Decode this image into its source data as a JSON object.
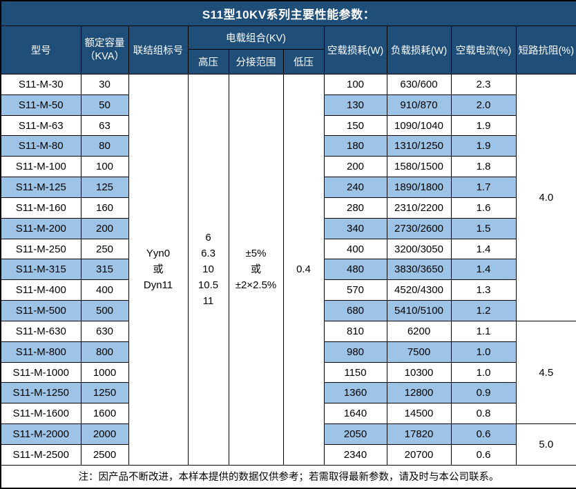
{
  "title": "S11型10KV系列主要性能参数：",
  "colors": {
    "header_bg": "#1F4E79",
    "header_text": "#FFFFFF",
    "row_alt_bg": "#9DC3E6",
    "border": "#000000",
    "body_text": "#000000"
  },
  "header": {
    "model": "型号",
    "capacity_line1": "额定容量",
    "capacity_line2": "（KVA）",
    "connection": "联结组标号",
    "voltage_group": "电载组合(KV)",
    "hv": "高压",
    "tap_range": "分接范围",
    "lv": "低压",
    "no_load_loss": "空载损耗(W)",
    "load_loss": "负载损耗(W)",
    "no_load_current": "空载电流(%)",
    "impedance": "短路抗阻(%)"
  },
  "merged": {
    "connection_lines": [
      "Yyn0",
      "或",
      "Dyn11"
    ],
    "hv_lines": [
      "6",
      "6.3",
      "10",
      "10.5",
      "11"
    ],
    "tap_lines": [
      "±5%",
      "或",
      "±2×2.5%"
    ],
    "lv": "0.4"
  },
  "impedance_groups": [
    {
      "value": "4.0",
      "start": 0,
      "rows": 12
    },
    {
      "value": "4.5",
      "start": 12,
      "rows": 5
    },
    {
      "value": "5.0",
      "start": 17,
      "rows": 2
    }
  ],
  "rows": [
    {
      "model": "S11-M-30",
      "capacity": "30",
      "no_load_loss": "100",
      "load_loss": "630/600",
      "no_load_current": "2.3"
    },
    {
      "model": "S11-M-50",
      "capacity": "50",
      "no_load_loss": "130",
      "load_loss": "910/870",
      "no_load_current": "2.0"
    },
    {
      "model": "S11-M-63",
      "capacity": "63",
      "no_load_loss": "150",
      "load_loss": "1090/1040",
      "no_load_current": "1.9"
    },
    {
      "model": "S11-M-80",
      "capacity": "80",
      "no_load_loss": "180",
      "load_loss": "1310/1250",
      "no_load_current": "1.9"
    },
    {
      "model": "S11-M-100",
      "capacity": "100",
      "no_load_loss": "200",
      "load_loss": "1580/1500",
      "no_load_current": "1.8"
    },
    {
      "model": "S11-M-125",
      "capacity": "125",
      "no_load_loss": "240",
      "load_loss": "1890/1800",
      "no_load_current": "1.7"
    },
    {
      "model": "S11-M-160",
      "capacity": "160",
      "no_load_loss": "280",
      "load_loss": "2310/2200",
      "no_load_current": "1.6"
    },
    {
      "model": "S11-M-200",
      "capacity": "200",
      "no_load_loss": "340",
      "load_loss": "2730/2600",
      "no_load_current": "1.5"
    },
    {
      "model": "S11-M-250",
      "capacity": "250",
      "no_load_loss": "400",
      "load_loss": "3200/3050",
      "no_load_current": "1.4"
    },
    {
      "model": "S11-M-315",
      "capacity": "315",
      "no_load_loss": "480",
      "load_loss": "3830/3650",
      "no_load_current": "1.4"
    },
    {
      "model": "S11-M-400",
      "capacity": "400",
      "no_load_loss": "570",
      "load_loss": "4520/4300",
      "no_load_current": "1.3"
    },
    {
      "model": "S11-M-500",
      "capacity": "500",
      "no_load_loss": "680",
      "load_loss": "5410/5100",
      "no_load_current": "1.2"
    },
    {
      "model": "S11-M-630",
      "capacity": "630",
      "no_load_loss": "810",
      "load_loss": "6200",
      "no_load_current": "1.1"
    },
    {
      "model": "S11-M-800",
      "capacity": "800",
      "no_load_loss": "980",
      "load_loss": "7500",
      "no_load_current": "1.0"
    },
    {
      "model": "S11-M-1000",
      "capacity": "1000",
      "no_load_loss": "1150",
      "load_loss": "10300",
      "no_load_current": "1.0"
    },
    {
      "model": "S11-M-1250",
      "capacity": "1250",
      "no_load_loss": "1360",
      "load_loss": "12800",
      "no_load_current": "0.9"
    },
    {
      "model": "S11-M-1600",
      "capacity": "1600",
      "no_load_loss": "1640",
      "load_loss": "14500",
      "no_load_current": "0.8"
    },
    {
      "model": "S11-M-2000",
      "capacity": "2000",
      "no_load_loss": "2050",
      "load_loss": "17820",
      "no_load_current": "0.6"
    },
    {
      "model": "S11-M-2500",
      "capacity": "2500",
      "no_load_loss": "2340",
      "load_loss": "20700",
      "no_load_current": "0.6"
    }
  ],
  "note": "注：因产品不断改进，本样本提供的数据仅供参考；若需取得最新参数，请及时与本公司联系。"
}
